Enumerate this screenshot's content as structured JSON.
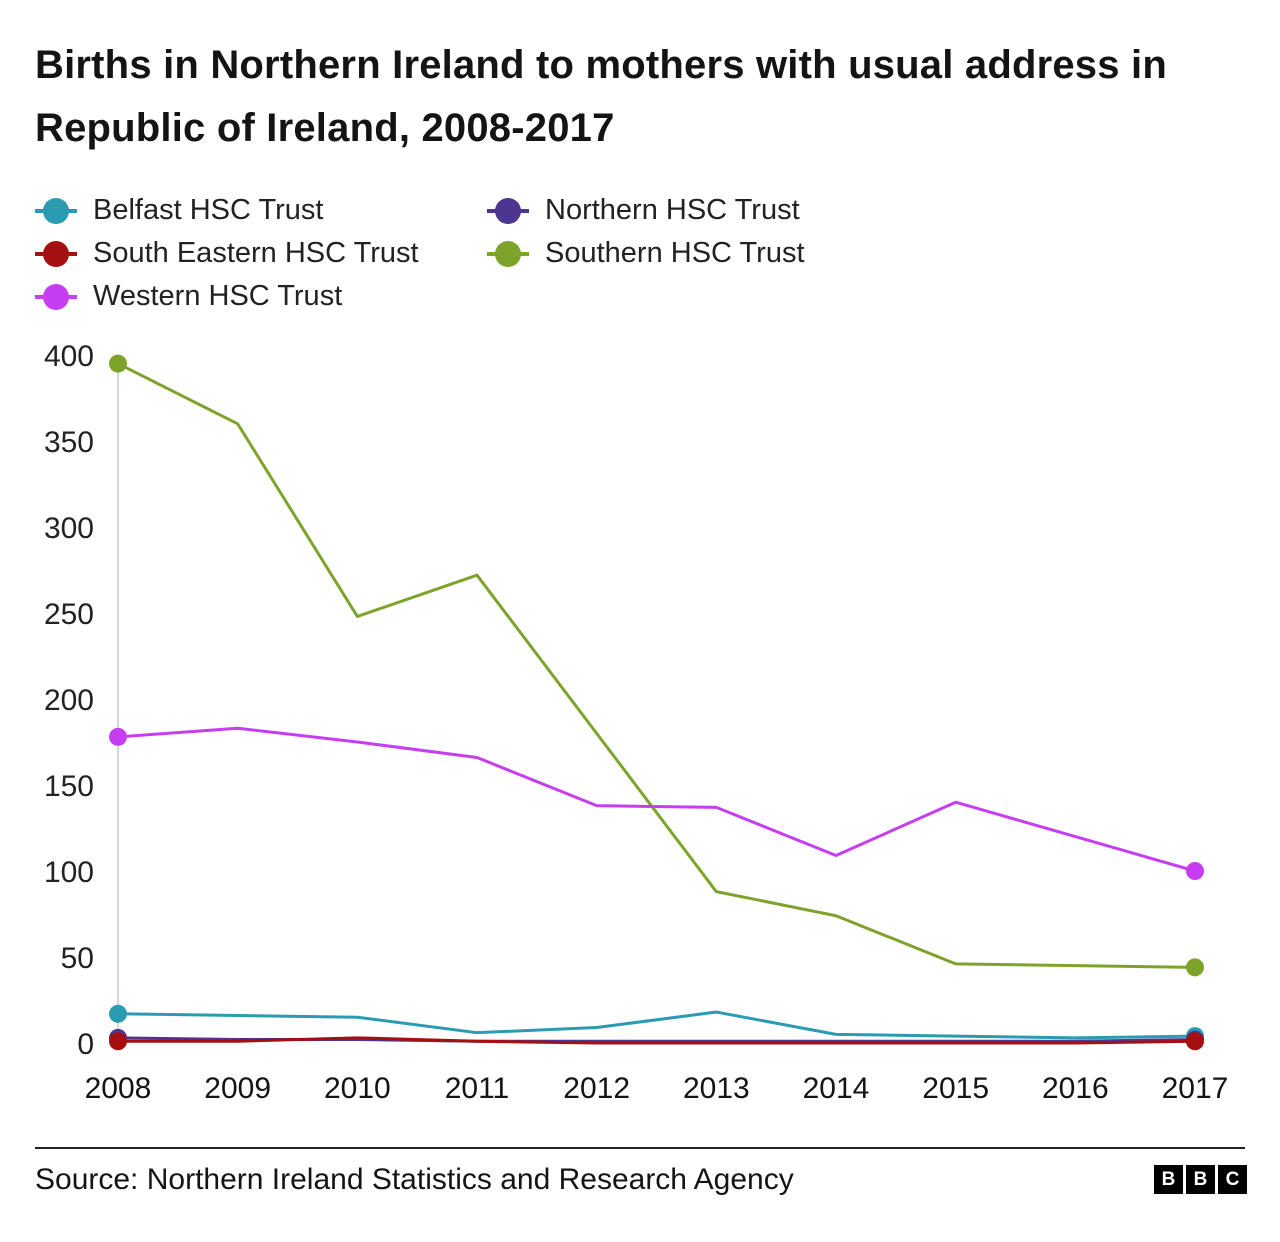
{
  "title": "Births in Northern Ireland to mothers with usual address in Republic of Ireland, 2008-2017",
  "source": "Source: Northern Ireland Statistics and Research Agency",
  "logo": {
    "letters": [
      "B",
      "B",
      "C"
    ]
  },
  "chart_data": {
    "type": "line",
    "x": [
      2008,
      2009,
      2010,
      2011,
      2012,
      2013,
      2014,
      2015,
      2016,
      2017
    ],
    "series": [
      {
        "name": "Belfast HSC Trust",
        "color": "#2b9bb1",
        "values": [
          17,
          16,
          15,
          6,
          9,
          18,
          5,
          4,
          3,
          4
        ]
      },
      {
        "name": "Northern HSC Trust",
        "color": "#4d3592",
        "values": [
          3,
          2,
          2,
          1,
          1,
          1,
          1,
          1,
          1,
          2
        ]
      },
      {
        "name": "South Eastern HSC Trust",
        "color": "#a60f0f",
        "values": [
          1,
          1,
          3,
          1,
          0,
          0,
          0,
          0,
          0,
          1
        ]
      },
      {
        "name": "Southern HSC Trust",
        "color": "#7da32a",
        "values": [
          395,
          360,
          248,
          272,
          180,
          88,
          74,
          46,
          45,
          44
        ]
      },
      {
        "name": "Western HSC Trust",
        "color": "#c73ef2",
        "values": [
          178,
          183,
          175,
          166,
          138,
          137,
          109,
          140,
          120,
          100
        ]
      }
    ],
    "ylim": [
      0,
      400
    ],
    "yticks": [
      0,
      50,
      100,
      150,
      200,
      250,
      300,
      350,
      400
    ],
    "grid": false,
    "legend_position": "top-left",
    "axis_line_color": "#c9c9c9"
  }
}
